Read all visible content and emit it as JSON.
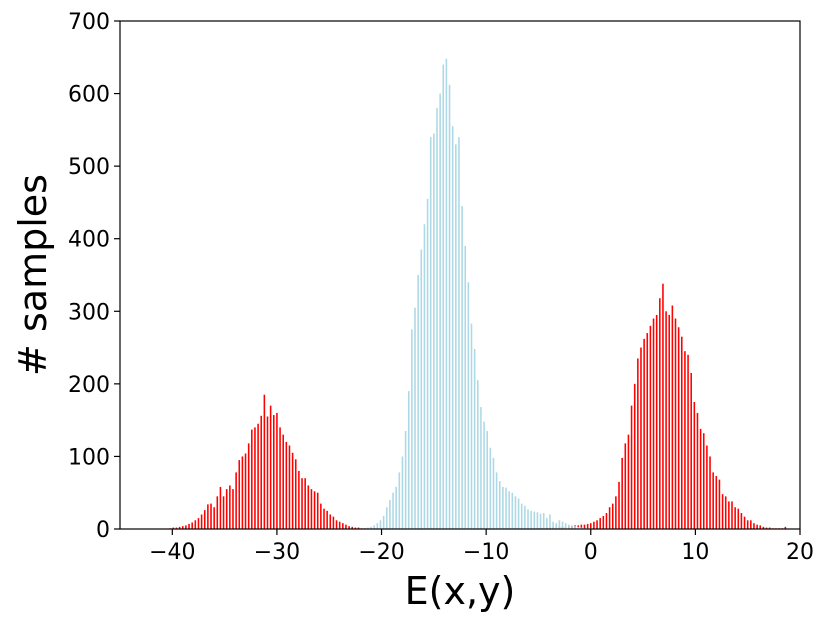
{
  "chart_data": {
    "type": "bar",
    "xlabel": "E(x,y)",
    "ylabel": "# samples",
    "xlim": [
      -45,
      20
    ],
    "ylim": [
      0,
      700
    ],
    "x_ticks": [
      -40,
      -30,
      -20,
      -10,
      0,
      10,
      20
    ],
    "y_ticks": [
      0,
      100,
      200,
      300,
      400,
      500,
      600,
      700
    ],
    "x_tick_labels": [
      "−40",
      "−30",
      "−20",
      "−10",
      "0",
      "10",
      "20"
    ],
    "y_tick_labels": [
      "0",
      "100",
      "200",
      "300",
      "400",
      "500",
      "600",
      "700"
    ],
    "grid": false,
    "series": [
      {
        "color": "#ff0000",
        "x": [
          -40.2,
          -39.9,
          -39.6,
          -39.3,
          -39.0,
          -38.7,
          -38.4,
          -38.1,
          -37.8,
          -37.5,
          -37.2,
          -36.9,
          -36.6,
          -36.3,
          -36.0,
          -35.7,
          -35.4,
          -35.1,
          -34.8,
          -34.5,
          -34.2,
          -33.9,
          -33.6,
          -33.3,
          -33.0,
          -32.7,
          -32.4,
          -32.1,
          -31.8,
          -31.5,
          -31.2,
          -30.9,
          -30.6,
          -30.3,
          -30.0,
          -29.7,
          -29.4,
          -29.1,
          -28.8,
          -28.5,
          -28.2,
          -27.9,
          -27.6,
          -27.3,
          -27.0,
          -26.7,
          -26.4,
          -26.1,
          -25.8,
          -25.5,
          -25.2,
          -24.9,
          -24.6,
          -24.3,
          -24.0,
          -23.7,
          -23.4,
          -23.1,
          -22.8,
          -22.5,
          -22.2,
          -21.9,
          -21.6,
          -21.3,
          -21.0,
          -20.7,
          -20.4,
          -20.1,
          -19.8
        ],
        "values": [
          1,
          2,
          2,
          3,
          4,
          5,
          7,
          9,
          12,
          15,
          20,
          26,
          34,
          35,
          30,
          45,
          58,
          45,
          55,
          60,
          55,
          78,
          95,
          100,
          104,
          118,
          137,
          140,
          145,
          156,
          185,
          155,
          170,
          157,
          160,
          140,
          130,
          120,
          115,
          105,
          96,
          80,
          70,
          70,
          60,
          55,
          52,
          50,
          35,
          28,
          25,
          20,
          17,
          12,
          10,
          8,
          6,
          4,
          3,
          2,
          2,
          1,
          1,
          1,
          0,
          0,
          0,
          0,
          0
        ]
      },
      {
        "color": "#ff0000",
        "x": [
          -5.4,
          -5.1,
          -4.8,
          -4.5,
          -4.2,
          -3.9,
          -3.6,
          -3.3,
          -3.0,
          -2.7,
          -2.4,
          -2.1,
          -1.8,
          -1.5,
          -1.2,
          -0.9,
          -0.6,
          -0.3,
          0.0,
          0.3,
          0.6,
          0.9,
          1.2,
          1.5,
          1.8,
          2.1,
          2.4,
          2.7,
          3.0,
          3.3,
          3.6,
          3.9,
          4.2,
          4.5,
          4.8,
          5.1,
          5.4,
          5.7,
          6.0,
          6.3,
          6.6,
          6.9,
          7.2,
          7.5,
          7.8,
          8.1,
          8.4,
          8.7,
          9.0,
          9.3,
          9.6,
          9.9,
          10.2,
          10.5,
          10.8,
          11.1,
          11.4,
          11.7,
          12.0,
          12.3,
          12.6,
          12.9,
          13.2,
          13.5,
          13.8,
          14.1,
          14.4,
          14.7,
          15.0,
          15.3,
          15.6,
          15.9,
          16.2,
          16.5,
          16.8,
          17.1,
          17.4,
          17.7,
          18.0,
          18.3,
          18.6
        ],
        "values": [
          1,
          1,
          1,
          1,
          2,
          2,
          2,
          2,
          3,
          3,
          3,
          4,
          4,
          5,
          5,
          6,
          6,
          7,
          8,
          10,
          12,
          15,
          18,
          22,
          30,
          35,
          45,
          65,
          98,
          118,
          130,
          170,
          200,
          235,
          250,
          262,
          270,
          280,
          290,
          295,
          318,
          338,
          300,
          295,
          308,
          290,
          278,
          265,
          245,
          240,
          215,
          175,
          160,
          138,
          132,
          115,
          100,
          78,
          73,
          68,
          48,
          45,
          38,
          38,
          30,
          28,
          22,
          17,
          12,
          12,
          8,
          6,
          5,
          3,
          2,
          2,
          1,
          1,
          1,
          1,
          3
        ]
      },
      {
        "color": "#add8e6",
        "x": [
          -21.6,
          -21.3,
          -21.0,
          -20.7,
          -20.4,
          -20.1,
          -19.8,
          -19.5,
          -19.2,
          -18.9,
          -18.6,
          -18.3,
          -18.0,
          -17.7,
          -17.4,
          -17.1,
          -16.8,
          -16.5,
          -16.2,
          -15.9,
          -15.6,
          -15.3,
          -15.0,
          -14.7,
          -14.4,
          -14.1,
          -13.8,
          -13.5,
          -13.2,
          -12.9,
          -12.6,
          -12.3,
          -12.0,
          -11.7,
          -11.4,
          -11.1,
          -10.8,
          -10.5,
          -10.2,
          -9.9,
          -9.6,
          -9.3,
          -9.0,
          -8.7,
          -8.4,
          -8.1,
          -7.8,
          -7.5,
          -7.2,
          -6.9,
          -6.6,
          -6.3,
          -6.0,
          -5.7,
          -5.4,
          -5.1,
          -4.8,
          -4.5,
          -4.2,
          -3.9,
          -3.6,
          -3.3,
          -3.0,
          -2.7,
          -2.4,
          -2.1,
          -1.8,
          -1.5,
          -1.2,
          -0.9,
          -0.6,
          -0.3,
          0.0,
          0.3,
          0.6
        ],
        "values": [
          1,
          2,
          3,
          5,
          8,
          12,
          18,
          30,
          40,
          50,
          58,
          78,
          100,
          135,
          190,
          275,
          305,
          350,
          385,
          420,
          455,
          540,
          545,
          580,
          600,
          640,
          648,
          612,
          555,
          530,
          540,
          445,
          390,
          340,
          283,
          248,
          205,
          168,
          148,
          135,
          112,
          98,
          78,
          66,
          58,
          57,
          52,
          50,
          45,
          42,
          35,
          32,
          27,
          25,
          24,
          23,
          21,
          22,
          15,
          20,
          10,
          8,
          12,
          10,
          8,
          6,
          5,
          4,
          3,
          2,
          1,
          1,
          1,
          0,
          0
        ]
      }
    ]
  }
}
